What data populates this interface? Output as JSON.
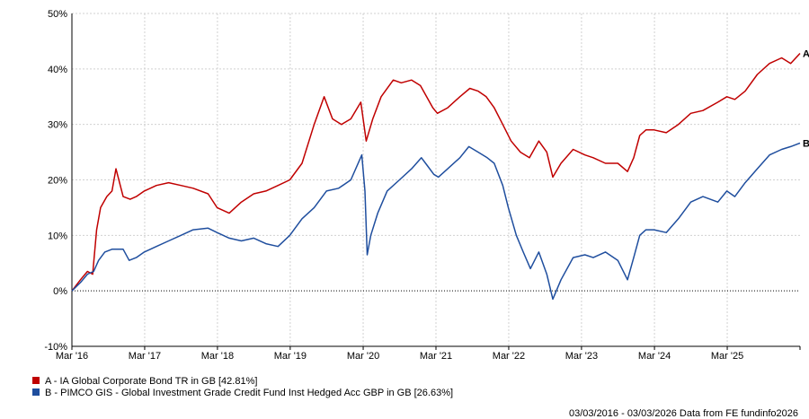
{
  "chart_data": {
    "type": "line",
    "title": "",
    "xlabel": "",
    "ylabel": "",
    "ylim": [
      -10,
      50
    ],
    "yticks": [
      "50%",
      "40%",
      "30%",
      "20%",
      "10%",
      "0%",
      "-10%"
    ],
    "ytick_values": [
      50,
      40,
      30,
      20,
      10,
      0,
      -10
    ],
    "xticks": [
      "Mar '16",
      "Mar '17",
      "Mar '18",
      "Mar '19",
      "Mar '20",
      "Mar '21",
      "Mar '22",
      "Mar '23",
      "Mar '24",
      "Mar '25"
    ],
    "xtick_values": [
      "2016-03",
      "2017-03",
      "2018-03",
      "2019-03",
      "2020-03",
      "2021-03",
      "2022-03",
      "2023-03",
      "2024-03",
      "2025-03"
    ],
    "x_range": [
      "2016-03-03",
      "2026-03-03"
    ],
    "grid": true,
    "zero_line": "dotted",
    "series": [
      {
        "name": "A - IA Global Corporate Bond TR in GB [42.81%]",
        "end_label": "A",
        "color": "#c00000",
        "points": [
          [
            "2016-03-03",
            0
          ],
          [
            "2016-04-15",
            2
          ],
          [
            "2016-05-20",
            3.5
          ],
          [
            "2016-06-15",
            3
          ],
          [
            "2016-07-05",
            11
          ],
          [
            "2016-07-25",
            15
          ],
          [
            "2016-08-25",
            17
          ],
          [
            "2016-09-20",
            18
          ],
          [
            "2016-10-10",
            22
          ],
          [
            "2016-11-15",
            17
          ],
          [
            "2016-12-20",
            16.5
          ],
          [
            "2017-01-20",
            17
          ],
          [
            "2017-03-01",
            18
          ],
          [
            "2017-05-01",
            19
          ],
          [
            "2017-07-01",
            19.5
          ],
          [
            "2017-09-01",
            19
          ],
          [
            "2017-11-01",
            18.5
          ],
          [
            "2018-01-15",
            17.5
          ],
          [
            "2018-03-01",
            15
          ],
          [
            "2018-05-01",
            14
          ],
          [
            "2018-07-01",
            16
          ],
          [
            "2018-09-01",
            17.5
          ],
          [
            "2018-11-01",
            18
          ],
          [
            "2019-01-01",
            19
          ],
          [
            "2019-03-01",
            20
          ],
          [
            "2019-05-01",
            23
          ],
          [
            "2019-07-01",
            30
          ],
          [
            "2019-08-20",
            35
          ],
          [
            "2019-10-01",
            31
          ],
          [
            "2019-11-15",
            30
          ],
          [
            "2020-01-01",
            31
          ],
          [
            "2020-02-20",
            34
          ],
          [
            "2020-03-18",
            27
          ],
          [
            "2020-04-20",
            31
          ],
          [
            "2020-06-01",
            35
          ],
          [
            "2020-08-01",
            38
          ],
          [
            "2020-09-10",
            37.5
          ],
          [
            "2020-11-01",
            38
          ],
          [
            "2020-12-15",
            37
          ],
          [
            "2021-01-15",
            35
          ],
          [
            "2021-02-15",
            33
          ],
          [
            "2021-03-10",
            32
          ],
          [
            "2021-05-01",
            33
          ],
          [
            "2021-07-01",
            35
          ],
          [
            "2021-08-20",
            36.5
          ],
          [
            "2021-10-01",
            36
          ],
          [
            "2021-11-10",
            35
          ],
          [
            "2021-12-20",
            33
          ],
          [
            "2022-02-01",
            30
          ],
          [
            "2022-03-15",
            27
          ],
          [
            "2022-05-01",
            25
          ],
          [
            "2022-06-15",
            24
          ],
          [
            "2022-08-01",
            27
          ],
          [
            "2022-09-10",
            25
          ],
          [
            "2022-10-10",
            20.5
          ],
          [
            "2022-11-20",
            23
          ],
          [
            "2023-01-20",
            25.5
          ],
          [
            "2023-03-20",
            24.5
          ],
          [
            "2023-05-01",
            24
          ],
          [
            "2023-07-01",
            23
          ],
          [
            "2023-09-01",
            23
          ],
          [
            "2023-10-20",
            21.5
          ],
          [
            "2023-11-20",
            24
          ],
          [
            "2023-12-20",
            28
          ],
          [
            "2024-01-20",
            29
          ],
          [
            "2024-03-01",
            29
          ],
          [
            "2024-05-01",
            28.5
          ],
          [
            "2024-07-01",
            30
          ],
          [
            "2024-09-01",
            32
          ],
          [
            "2024-11-01",
            32.5
          ],
          [
            "2025-01-15",
            34
          ],
          [
            "2025-03-01",
            35
          ],
          [
            "2025-04-10",
            34.5
          ],
          [
            "2025-06-01",
            36
          ],
          [
            "2025-08-01",
            39
          ],
          [
            "2025-10-01",
            41
          ],
          [
            "2025-12-01",
            42
          ],
          [
            "2026-01-15",
            41
          ],
          [
            "2026-03-03",
            42.81
          ]
        ]
      },
      {
        "name": "B - PIMCO GIS - Global Investment Grade Credit Fund Inst Hedged Acc GBP in GB [26.63%]",
        "end_label": "B",
        "color": "#1f4e9e",
        "points": [
          [
            "2016-03-03",
            0
          ],
          [
            "2016-04-15",
            1.5
          ],
          [
            "2016-05-20",
            3
          ],
          [
            "2016-06-20",
            3.5
          ],
          [
            "2016-07-15",
            5.5
          ],
          [
            "2016-08-15",
            7
          ],
          [
            "2016-09-20",
            7.5
          ],
          [
            "2016-11-15",
            7.5
          ],
          [
            "2016-12-15",
            5.5
          ],
          [
            "2017-01-20",
            6
          ],
          [
            "2017-03-01",
            7
          ],
          [
            "2017-05-01",
            8
          ],
          [
            "2017-07-01",
            9
          ],
          [
            "2017-09-01",
            10
          ],
          [
            "2017-11-01",
            11
          ],
          [
            "2018-01-15",
            11.3
          ],
          [
            "2018-03-01",
            10.5
          ],
          [
            "2018-05-01",
            9.5
          ],
          [
            "2018-07-01",
            9
          ],
          [
            "2018-09-01",
            9.5
          ],
          [
            "2018-11-01",
            8.5
          ],
          [
            "2019-01-01",
            8
          ],
          [
            "2019-03-01",
            10
          ],
          [
            "2019-05-01",
            13
          ],
          [
            "2019-07-01",
            15
          ],
          [
            "2019-09-01",
            18
          ],
          [
            "2019-11-01",
            18.5
          ],
          [
            "2020-01-01",
            20
          ],
          [
            "2020-02-25",
            24.5
          ],
          [
            "2020-03-12",
            18
          ],
          [
            "2020-03-23",
            6.5
          ],
          [
            "2020-04-10",
            10
          ],
          [
            "2020-05-15",
            14
          ],
          [
            "2020-07-01",
            18
          ],
          [
            "2020-09-01",
            20
          ],
          [
            "2020-11-01",
            22
          ],
          [
            "2020-12-20",
            24
          ],
          [
            "2021-01-20",
            22.5
          ],
          [
            "2021-02-20",
            21
          ],
          [
            "2021-03-15",
            20.5
          ],
          [
            "2021-05-01",
            22
          ],
          [
            "2021-07-01",
            24
          ],
          [
            "2021-08-15",
            26
          ],
          [
            "2021-10-01",
            25
          ],
          [
            "2021-11-15",
            24
          ],
          [
            "2021-12-20",
            23
          ],
          [
            "2022-02-01",
            19
          ],
          [
            "2022-03-01",
            15
          ],
          [
            "2022-04-10",
            10
          ],
          [
            "2022-05-15",
            7
          ],
          [
            "2022-06-20",
            4
          ],
          [
            "2022-08-01",
            7
          ],
          [
            "2022-09-10",
            3
          ],
          [
            "2022-10-10",
            -1.5
          ],
          [
            "2022-11-20",
            2
          ],
          [
            "2023-01-20",
            6
          ],
          [
            "2023-03-20",
            6.5
          ],
          [
            "2023-05-01",
            6
          ],
          [
            "2023-07-01",
            7
          ],
          [
            "2023-09-01",
            5.5
          ],
          [
            "2023-10-20",
            2
          ],
          [
            "2023-11-20",
            6
          ],
          [
            "2023-12-20",
            10
          ],
          [
            "2024-01-20",
            11
          ],
          [
            "2024-03-01",
            11
          ],
          [
            "2024-05-01",
            10.5
          ],
          [
            "2024-07-01",
            13
          ],
          [
            "2024-09-01",
            16
          ],
          [
            "2024-11-01",
            17
          ],
          [
            "2025-01-15",
            16
          ],
          [
            "2025-03-01",
            18
          ],
          [
            "2025-04-10",
            17
          ],
          [
            "2025-06-01",
            19.5
          ],
          [
            "2025-08-01",
            22
          ],
          [
            "2025-10-01",
            24.5
          ],
          [
            "2025-12-01",
            25.5
          ],
          [
            "2026-01-15",
            26
          ],
          [
            "2026-03-03",
            26.63
          ]
        ]
      }
    ]
  },
  "legend": {
    "a_label": "A - IA Global Corporate Bond TR in GB [42.81%]",
    "a_color": "#c00000",
    "b_label": "B - PIMCO GIS - Global Investment Grade Credit Fund Inst Hedged Acc GBP in GB [26.63%]",
    "b_color": "#1f4e9e"
  },
  "footer": "03/03/2016 - 03/03/2026 Data from FE fundinfo2026"
}
